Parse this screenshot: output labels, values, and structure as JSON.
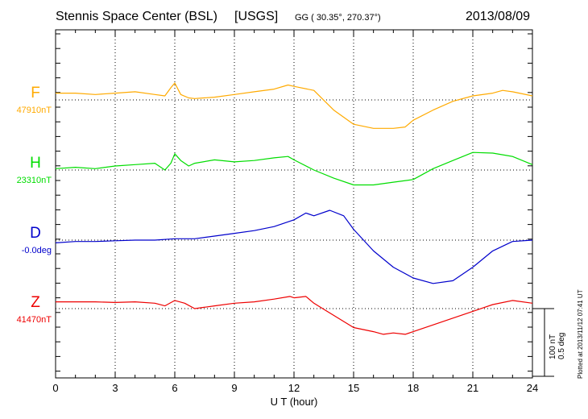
{
  "header": {
    "station": "Stennis Space Center (BSL)",
    "agency": "[USGS]",
    "coords": "GG ( 30.35°, 270.37°)",
    "date": "2013/08/09"
  },
  "side": {
    "plotted": "Plotted at 2013/11/12 07:41 UT",
    "scale_nt": "100 nT",
    "scale_deg": "0.5 deg"
  },
  "colors": {
    "F": "#ffaa00",
    "H": "#00dd00",
    "D": "#0000cc",
    "Z": "#ee0000"
  },
  "chart_data": {
    "type": "line",
    "xlabel": "U T (hour)",
    "x_ticks": [
      "0",
      "3",
      "6",
      "9",
      "12",
      "15",
      "18",
      "21",
      "24"
    ],
    "xlim": [
      0,
      24
    ],
    "grid": true,
    "series": [
      {
        "name": "F",
        "baseline_label": "47910nT",
        "baseline": 47910,
        "unit": "nT",
        "x": [
          0,
          1,
          2,
          3,
          4,
          5,
          5.5,
          5.8,
          6,
          6.3,
          6.7,
          7,
          8,
          9,
          10,
          11,
          11.7,
          12,
          13,
          14,
          15,
          16,
          17,
          17.6,
          18,
          19,
          20,
          21,
          22,
          22.5,
          23,
          24
        ],
        "y": [
          47920,
          47920,
          47918,
          47920,
          47922,
          47918,
          47916,
          47928,
          47935,
          47918,
          47913,
          47912,
          47914,
          47918,
          47922,
          47926,
          47932,
          47930,
          47924,
          47895,
          47874,
          47868,
          47868,
          47870,
          47880,
          47895,
          47908,
          47916,
          47920,
          47924,
          47922,
          47916
        ]
      },
      {
        "name": "H",
        "baseline_label": "23310nT",
        "baseline": 23310,
        "unit": "nT",
        "x": [
          0,
          1,
          2,
          3,
          4,
          5,
          5.5,
          5.8,
          6,
          6.3,
          6.7,
          7,
          8,
          9,
          10,
          11,
          11.7,
          12,
          13,
          14,
          15,
          16,
          17,
          18,
          19,
          20,
          21,
          22,
          23,
          24
        ],
        "y": [
          23312,
          23314,
          23312,
          23316,
          23318,
          23320,
          23310,
          23320,
          23334,
          23324,
          23316,
          23320,
          23325,
          23322,
          23324,
          23328,
          23330,
          23325,
          23310,
          23298,
          23288,
          23288,
          23292,
          23296,
          23312,
          23324,
          23336,
          23335,
          23330,
          23318
        ]
      },
      {
        "name": "D",
        "baseline_label": "-0.0deg",
        "baseline": 0.0,
        "unit": "deg",
        "x": [
          0,
          1,
          2,
          3,
          4,
          5,
          6,
          7,
          8,
          9,
          10,
          11,
          12,
          12.6,
          13,
          13.8,
          14.5,
          15,
          16,
          17,
          18,
          19,
          20,
          21,
          22,
          23,
          24
        ],
        "y": [
          -0.02,
          -0.01,
          -0.01,
          -0.005,
          0.0,
          0.0,
          0.01,
          0.01,
          0.03,
          0.05,
          0.07,
          0.1,
          0.15,
          0.2,
          0.18,
          0.22,
          0.18,
          0.08,
          -0.08,
          -0.2,
          -0.28,
          -0.32,
          -0.3,
          -0.2,
          -0.08,
          -0.01,
          0.0
        ]
      },
      {
        "name": "Z",
        "baseline_label": "41470nT",
        "baseline": 41470,
        "unit": "nT",
        "x": [
          0,
          1,
          2,
          3,
          4,
          5,
          5.5,
          6,
          6.5,
          7,
          8,
          9,
          10,
          11,
          11.8,
          12,
          12.6,
          13,
          14,
          15,
          16,
          16.5,
          17,
          17.6,
          18,
          19,
          20,
          21,
          22,
          23,
          24
        ],
        "y": [
          41480,
          41480,
          41480,
          41479,
          41480,
          41478,
          41474,
          41482,
          41478,
          41470,
          41474,
          41478,
          41480,
          41484,
          41488,
          41486,
          41488,
          41478,
          41460,
          41442,
          41436,
          41432,
          41434,
          41432,
          41436,
          41446,
          41456,
          41466,
          41476,
          41482,
          41478
        ]
      }
    ]
  }
}
